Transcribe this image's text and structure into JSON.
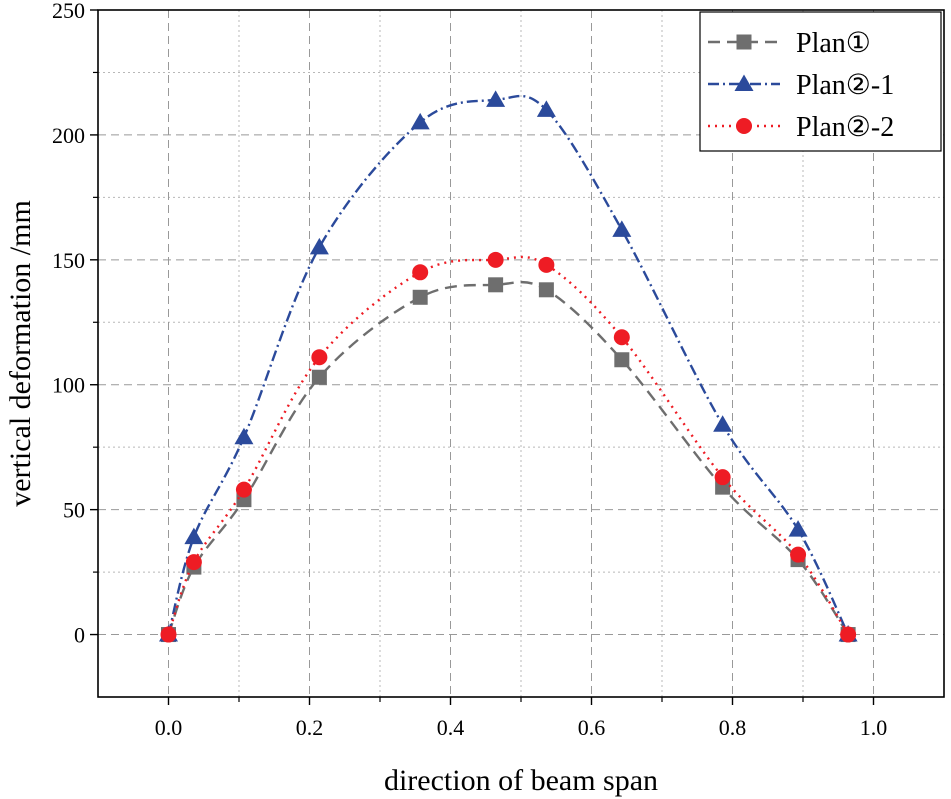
{
  "chart_data": {
    "type": "line",
    "title": "",
    "xlabel": "direction of beam span",
    "ylabel": "vertical deformation /mm",
    "xlim": [
      -0.1,
      1.1
    ],
    "ylim": [
      -25,
      250
    ],
    "x_ticks": [
      "0.0",
      "0.2",
      "0.4",
      "0.6",
      "0.8",
      "1.0"
    ],
    "y_ticks": [
      "0",
      "50",
      "100",
      "150",
      "200",
      "250"
    ],
    "legend_position": "top-right",
    "grid": true,
    "series": [
      {
        "name": "Plan①",
        "marker": "square",
        "line_style": "dash",
        "color": "#6e6e6e",
        "x": [
          0.0,
          0.036,
          0.107,
          0.214,
          0.357,
          0.464,
          0.536,
          0.643,
          0.786,
          0.893,
          0.964
        ],
        "y": [
          0,
          27,
          54,
          103,
          135,
          140,
          138,
          110,
          59,
          30,
          0
        ]
      },
      {
        "name": "Plan②-1",
        "marker": "triangle",
        "line_style": "dash-dot",
        "color": "#2b4a9b",
        "x": [
          0.0,
          0.036,
          0.107,
          0.214,
          0.357,
          0.464,
          0.536,
          0.643,
          0.786,
          0.893,
          0.964
        ],
        "y": [
          0,
          39,
          79,
          155,
          205,
          214,
          210,
          162,
          84,
          42,
          0
        ]
      },
      {
        "name": "Plan②-2",
        "marker": "circle",
        "line_style": "dot",
        "color": "#ee1c24",
        "x": [
          0.0,
          0.036,
          0.107,
          0.214,
          0.357,
          0.464,
          0.536,
          0.643,
          0.786,
          0.893,
          0.964
        ],
        "y": [
          0,
          29,
          58,
          111,
          145,
          150,
          148,
          119,
          63,
          32,
          0
        ]
      }
    ]
  }
}
